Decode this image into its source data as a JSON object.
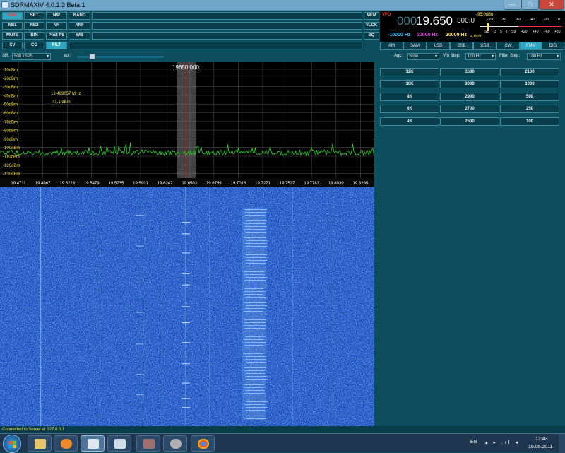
{
  "window": {
    "title": "SDRMAXIV 4.0.1.3 Beta 1",
    "controls": {
      "minimize": "—",
      "maximize": "□",
      "close": "✕"
    }
  },
  "toolbar": {
    "buttons": [
      {
        "label": "RUN",
        "state": "selected-red"
      },
      {
        "label": "SET",
        "state": "normal"
      },
      {
        "label": "N/P",
        "state": "normal"
      },
      {
        "label": "BAND",
        "state": "normal"
      },
      {
        "label": "NB1",
        "state": "normal"
      },
      {
        "label": "NB2",
        "state": "normal"
      },
      {
        "label": "NR",
        "state": "normal"
      },
      {
        "label": "ANF",
        "state": "normal"
      },
      {
        "label": "MUTE",
        "state": "normal"
      },
      {
        "label": "BIN",
        "state": "normal"
      },
      {
        "label": "Post PS",
        "state": "normal"
      },
      {
        "label": "WB",
        "state": "normal"
      },
      {
        "label": "CV",
        "state": "normal"
      },
      {
        "label": "CO",
        "state": "normal"
      },
      {
        "label": "FILT",
        "state": "selected"
      }
    ],
    "right_buttons": [
      "MEM",
      "VLCK",
      "SQ"
    ]
  },
  "vfo": {
    "label": "VFO",
    "freq_dim": "000",
    "freq_main": "19.650",
    "step": "300.0",
    "low": "-10000 Hz",
    "mid": "10000 Hz",
    "high": "20000 Hz",
    "meter_value": "-95.0dBm",
    "uv": "4.0uV",
    "scale_top": [
      "-100",
      "-80",
      "-60",
      "-40",
      "-20",
      "0"
    ],
    "scale_bottom": [
      "S1",
      "3",
      "5",
      "7",
      "S9",
      "+20",
      "+40",
      "+60",
      "+80"
    ]
  },
  "modes": [
    {
      "label": "AM",
      "selected": false
    },
    {
      "label": "SAM",
      "selected": false
    },
    {
      "label": "LSB",
      "selected": false
    },
    {
      "label": "DSB",
      "selected": false
    },
    {
      "label": "USB",
      "selected": false
    },
    {
      "label": "CW",
      "selected": false
    },
    {
      "label": "FMN",
      "selected": true
    },
    {
      "label": "DIG",
      "selected": false
    }
  ],
  "options": {
    "sr_label": "SR:",
    "sr_value": "500 kSPS",
    "vol_label": "Vol:",
    "volume": 0.15,
    "agc_label": "Agc:",
    "agc_value": "Slow",
    "vfo_step_label": "Vfo Step:",
    "vfo_step_value": "100 Hz",
    "filter_step_label": "Filter Step:",
    "filter_step_value": "100 Hz"
  },
  "spectrum": {
    "center_label": "19650.000",
    "cursor_freq": "19.499057  MHz",
    "cursor_level": "-41.1 dBm",
    "db_labels": [
      "-10dBm",
      "-20dBm",
      "-30dBm",
      "-40dBm",
      "-50dBm",
      "-60dBm",
      "-70dBm",
      "-80dBm",
      "-90dBm",
      "-100dBm",
      "-110dBm",
      "-120dBm",
      "-130dBm"
    ],
    "freq_labels": [
      "19.4711",
      "19.4967",
      "19.5223",
      "19.5479",
      "19.5735",
      "19.5991",
      "19.6247",
      "19.6503",
      "19.6759",
      "19.7015",
      "19.7271",
      "19.7527",
      "19.7783",
      "19.8039",
      "19.8295"
    ]
  },
  "filters": [
    [
      "12K",
      "3500",
      "2100"
    ],
    [
      "10K",
      "3000",
      "1000"
    ],
    [
      "8K",
      "2900",
      "500"
    ],
    [
      "6K",
      "2700",
      "250"
    ],
    [
      "4K",
      "2500",
      "100"
    ]
  ],
  "status": "Connected to Server at 127.0.0.1",
  "taskbar": {
    "language": "EN",
    "tray_icons": "▴ ▸ .ıl ◂",
    "time": "12:43",
    "date": "19.05.2011",
    "apps": [
      "windows-explorer",
      "media-player",
      "sdrmax",
      "terminal",
      "sdr-tool",
      "hard-drive-tool",
      "chrome"
    ]
  },
  "colors": {
    "panel": "#0e4d5e",
    "button_selected": "#2da8c4",
    "spectrum_trace": "#22dd22",
    "waterfall": "#1a4cbd"
  }
}
